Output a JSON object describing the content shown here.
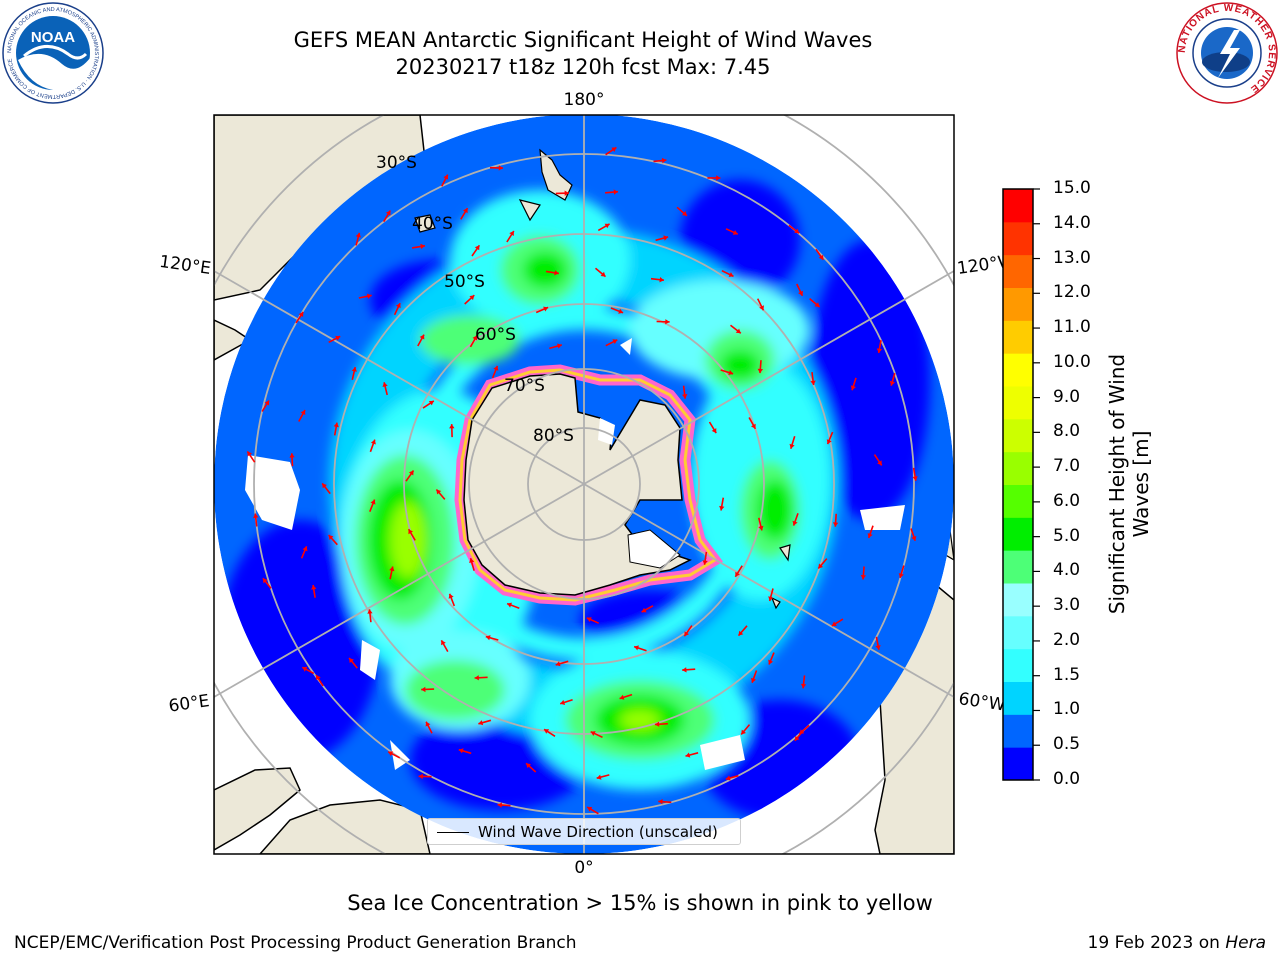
{
  "title": {
    "line1": "GEFS MEAN Antarctic Significant Height of Wind Waves",
    "line2": "20230217 t18z 120h fcst   Max: 7.45"
  },
  "map": {
    "projection": "south polar stereographic",
    "longitude_labels": [
      "180°",
      "120°E",
      "120°W",
      "60°E",
      "60°W",
      "0°"
    ],
    "latitude_labels": [
      "30°S",
      "40°S",
      "50°S",
      "60°S",
      "70°S",
      "80°S"
    ],
    "legend_label": "Wind Wave Direction (unscaled)",
    "arrow_color": "#ff0000",
    "land_color": "#ece8d8",
    "sea_ice_colors": [
      "#ff66cc",
      "#ffcc33"
    ]
  },
  "colorbar": {
    "label": "Significant Height of Wind Waves [m]",
    "ticks": [
      "0.0",
      "0.5",
      "1.0",
      "1.5",
      "2.0",
      "3.0",
      "4.0",
      "5.0",
      "6.0",
      "7.0",
      "8.0",
      "9.0",
      "10.0",
      "11.0",
      "12.0",
      "13.0",
      "14.0",
      "15.0"
    ],
    "colors": [
      "#0000ff",
      "#0066ff",
      "#00d4ff",
      "#33ffff",
      "#66ffff",
      "#99ffff",
      "#4dff77",
      "#00ee00",
      "#55ff00",
      "#99ff00",
      "#ccff00",
      "#eeff00",
      "#ffff00",
      "#ffcc00",
      "#ff9900",
      "#ff6600",
      "#ff3300",
      "#ff0000"
    ]
  },
  "logos": {
    "noaa_text": "NOAA",
    "noaa_ring": "NATIONAL OCEANIC AND ATMOSPHERIC ADMINISTRATION · U.S. DEPARTMENT OF COMMERCE",
    "nws_ring": "NATIONAL WEATHER SERVICE"
  },
  "subtitle": "Sea Ice Concentration > 15% is shown in pink to yellow",
  "footer": {
    "left": "NCEP/EMC/Verification Post Processing Product Generation Branch",
    "right_date": "19 Feb 2023 on",
    "right_host": "Hera"
  }
}
